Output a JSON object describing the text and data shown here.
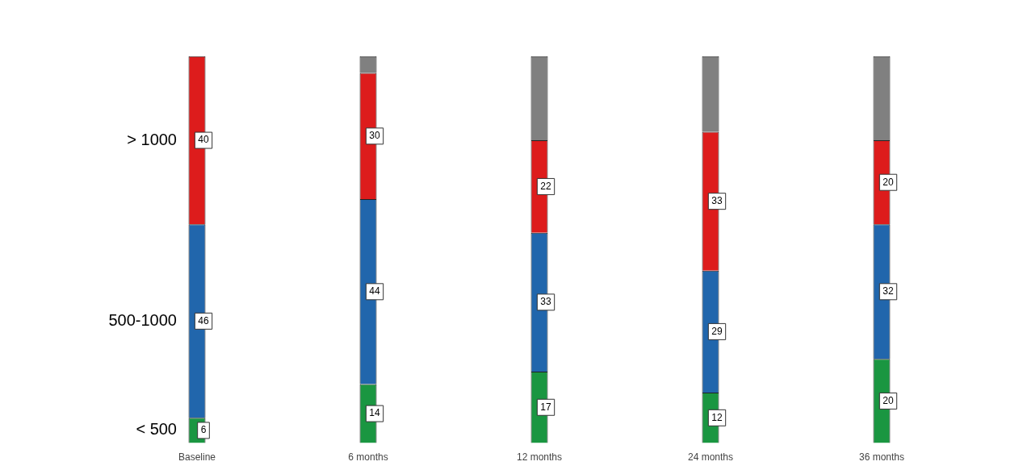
{
  "chart_data": {
    "type": "bar",
    "stacked": true,
    "tick_labels": "x",
    "legend": false,
    "grid": false,
    "categories": [
      "Baseline",
      "6 months",
      "12 months",
      "24 months",
      "36 months"
    ],
    "series": [
      {
        "name": "< 500",
        "color": "#1a9641",
        "values": [
          6,
          14,
          17,
          12,
          20
        ],
        "value_labels": [
          "6",
          "14",
          "17",
          "12",
          "20"
        ]
      },
      {
        "name": "500-1000",
        "color": "#2166ac",
        "values": [
          46,
          44,
          33,
          29,
          32
        ],
        "value_labels": [
          "46",
          "44",
          "33",
          "29",
          "32"
        ]
      },
      {
        "name": "> 1000",
        "color": "#dd1c1c",
        "values": [
          40,
          30,
          22,
          33,
          20
        ],
        "value_labels": [
          "40",
          "30",
          "22",
          "33",
          "20"
        ]
      },
      {
        "color": "#808080",
        "values": [
          null,
          4,
          20,
          18,
          20
        ],
        "value_labels": [
          null,
          null,
          null,
          null,
          null
        ]
      }
    ]
  }
}
